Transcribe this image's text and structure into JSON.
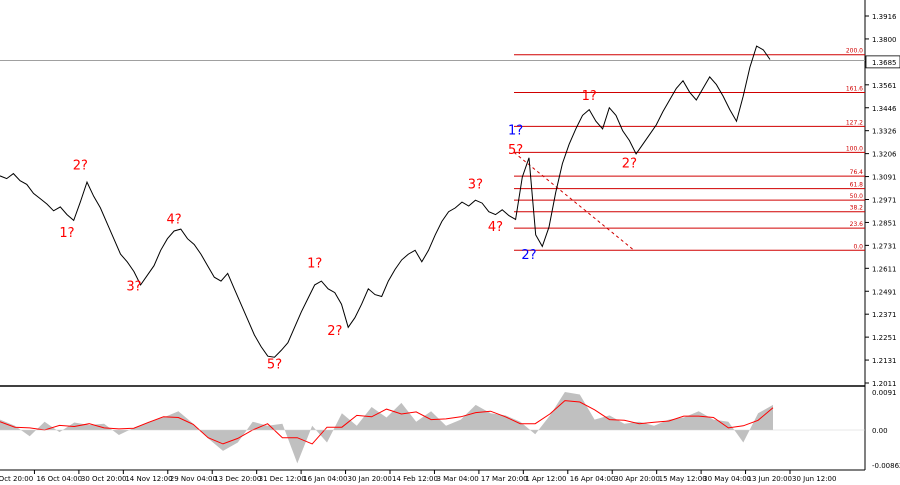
{
  "chart_data": [
    {
      "type": "line",
      "series": [
        {
          "values": [
            1.3086,
            1.3072,
            1.3098,
            1.3061,
            1.3042,
            1.2995,
            1.2968,
            1.294,
            1.2905,
            1.2925,
            1.2885,
            1.2855,
            1.295,
            1.3054,
            1.298,
            1.292,
            1.284,
            1.276,
            1.268,
            1.264,
            1.259,
            1.252,
            1.257,
            1.262,
            1.27,
            1.276,
            1.28,
            1.281,
            1.276,
            1.273,
            1.268,
            1.262,
            1.256,
            1.254,
            1.258,
            1.25,
            1.242,
            1.234,
            1.226,
            1.22,
            1.215,
            1.2145,
            1.218,
            1.222,
            1.23,
            1.238,
            1.245,
            1.252,
            1.254,
            1.25,
            1.248,
            1.242,
            1.23,
            1.235,
            1.242,
            1.25,
            1.247,
            1.246,
            1.254,
            1.26,
            1.265,
            1.268,
            1.27,
            1.264,
            1.27,
            1.278,
            1.285,
            1.29,
            1.292,
            1.295,
            1.293,
            1.296,
            1.2945,
            1.29,
            1.2885,
            1.291,
            1.288,
            1.286,
            1.308,
            1.318,
            1.278,
            1.272,
            1.282,
            1.3,
            1.315,
            1.325,
            1.333,
            1.34,
            1.343,
            1.337,
            1.333,
            1.344,
            1.34,
            1.332,
            1.327,
            1.32,
            1.325,
            1.33,
            1.335,
            1.342,
            1.348,
            1.354,
            1.358,
            1.352,
            1.348,
            1.354,
            1.36,
            1.356,
            1.35,
            1.343,
            1.337,
            1.35,
            1.365,
            1.376,
            1.374,
            1.369
          ]
        }
      ],
      "price_labels": [
        "1.3916",
        "1.3800",
        "1.3685",
        "1.3561",
        "1.3446",
        "1.3326",
        "1.3206",
        "1.3091",
        "1.2971",
        "1.2851",
        "1.2731",
        "1.2611",
        "1.2491",
        "1.2371",
        "1.2251",
        "1.2131",
        "1.2011"
      ],
      "current_price": "1.3685",
      "ylim": [
        1.2011,
        1.3916
      ],
      "x_tick_labels": [
        "2 Oct 20:00",
        "16 Oct 04:00",
        "30 Oct 20:00",
        "14 Nov 12:00",
        "29 Nov 04:00",
        "13 Dec 20:00",
        "31 Dec 12:00",
        "16 Jan 04:00",
        "30 Jan 20:00",
        "14 Feb 12:00",
        "3 Mar 04:00",
        "17 Mar 20:00",
        "1 Apr 12:00",
        "16 Apr 04:00",
        "30 Apr 20:00",
        "15 May 12:00",
        "30 May 04:00",
        "13 Jun 20:00",
        "30 Jun 12:00"
      ],
      "fibonacci_levels": [
        {
          "label": "200.0",
          "value": 1.3715
        },
        {
          "label": "161.6",
          "value": 1.3519
        },
        {
          "label": "127.2",
          "value": 1.3343
        },
        {
          "label": "100.0",
          "value": 1.3208
        },
        {
          "label": "76.4",
          "value": 1.3085
        },
        {
          "label": "61.8",
          "value": 1.302
        },
        {
          "label": "50.0",
          "value": 1.296
        },
        {
          "label": "38.2",
          "value": 1.29
        },
        {
          "label": "23.6",
          "value": 1.2815
        },
        {
          "label": "0.0",
          "value": 1.27
        }
      ],
      "wave_labels": [
        {
          "text": "2?",
          "color": "#ff0000"
        },
        {
          "text": "1?",
          "color": "#ff0000"
        },
        {
          "text": "4?",
          "color": "#ff0000"
        },
        {
          "text": "3?",
          "color": "#ff0000"
        },
        {
          "text": "5?",
          "color": "#ff0000"
        },
        {
          "text": "1?",
          "color": "#ff0000"
        },
        {
          "text": "2?",
          "color": "#ff0000"
        },
        {
          "text": "3?",
          "color": "#ff0000"
        },
        {
          "text": "4?",
          "color": "#ff0000"
        },
        {
          "text": "1?",
          "color": "#0000ff"
        },
        {
          "text": "5?",
          "color": "#ff0000"
        },
        {
          "text": "2?",
          "color": "#0000ff"
        },
        {
          "text": "1?",
          "color": "#ff0000"
        },
        {
          "text": "2?",
          "color": "#ff0000"
        }
      ],
      "colors": {
        "price": "#000000",
        "fib": "#d00000",
        "wave_red": "#ff0000",
        "wave_blue": "#0000ff"
      }
    },
    {
      "type": "bar",
      "series": [
        {
          "values": [
            0.0025,
            0.001,
            -0.0015,
            0.002,
            -0.0005,
            0.0018,
            0.0012,
            0.0015,
            -0.0012,
            0.0005,
            0.002,
            0.003,
            0.0045,
            0.0015,
            -0.002,
            -0.005,
            -0.003,
            0.002,
            0.001,
            0.0015,
            -0.008,
            0.001,
            -0.003,
            0.004,
            0.001,
            0.0055,
            0.003,
            0.0065,
            0.002,
            0.0045,
            0.001,
            0.0025,
            0.006,
            0.004,
            0.0035,
            0.002,
            -0.001,
            0.0035,
            0.0091,
            0.0085,
            0.0025,
            0.0035,
            0.0015,
            0.002,
            0.001,
            0.0025,
            0.003,
            0.0045,
            0.0025,
            0.002,
            -0.003,
            0.004,
            0.006
          ]
        }
      ],
      "y_tick_labels": [
        "0.0091",
        "0.00",
        "-0.00862"
      ],
      "ylim": [
        -0.00862,
        0.0091
      ],
      "colors": {
        "bars": "#c0c0c0",
        "signal": "#ff0000"
      }
    }
  ]
}
